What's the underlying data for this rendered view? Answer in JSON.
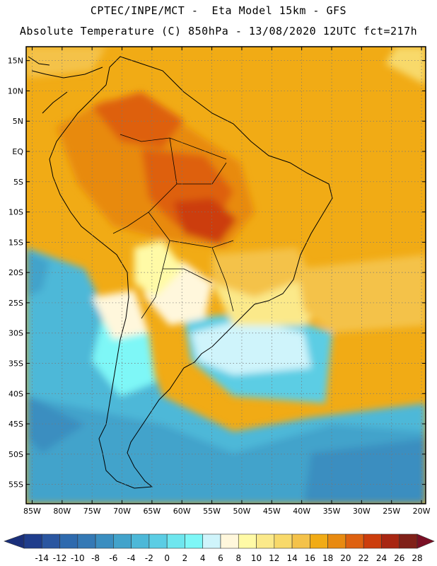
{
  "header": {
    "title_line1": "CPTEC/INPE/MCT -  Eta Model 15km - GFS",
    "title_line2": "Absolute Temperature (C) 850hPa - 13/08/2020 12UTC fct=217h"
  },
  "map": {
    "region": "South America",
    "lat_labels": [
      "15N",
      "10N",
      "5N",
      "EQ",
      "5S",
      "10S",
      "15S",
      "20S",
      "25S",
      "30S",
      "35S",
      "40S",
      "45S",
      "50S",
      "55S"
    ],
    "lat_values": [
      15,
      10,
      5,
      0,
      -5,
      -10,
      -15,
      -20,
      -25,
      -30,
      -35,
      -40,
      -45,
      -50,
      -55
    ],
    "lon_labels": [
      "85W",
      "80W",
      "75W",
      "70W",
      "65W",
      "60W",
      "55W",
      "50W",
      "45W",
      "40W",
      "35W",
      "30W",
      "25W",
      "20W"
    ],
    "lon_values": [
      -85,
      -80,
      -75,
      -70,
      -65,
      -60,
      -55,
      -50,
      -45,
      -40,
      -35,
      -30,
      -25,
      -20
    ],
    "lat_range": [
      -58.2,
      17.3
    ],
    "lon_range": [
      -86.0,
      -19.3
    ]
  },
  "colorbar": {
    "labels": [
      "-14",
      "-12",
      "-10",
      "-8",
      "-6",
      "-4",
      "-2",
      "0",
      "2",
      "4",
      "6",
      "8",
      "10",
      "12",
      "14",
      "16",
      "18",
      "20",
      "22",
      "24",
      "26",
      "28"
    ],
    "colors": [
      "#1f3d8c",
      "#2a56a0",
      "#2e6aae",
      "#3479b5",
      "#3a8ec0",
      "#42a3cb",
      "#4db8d8",
      "#5bcde4",
      "#6ee6ee",
      "#7ef7f7",
      "#cff4fb",
      "#fff7dc",
      "#fffaa6",
      "#fbe98a",
      "#f8d96a",
      "#f4c24a",
      "#f1ab15",
      "#e88a10",
      "#de6110",
      "#cc3d0c",
      "#a82612",
      "#802018"
    ],
    "under_color": "#1a2f7a",
    "over_color": "#7a0f24"
  }
}
